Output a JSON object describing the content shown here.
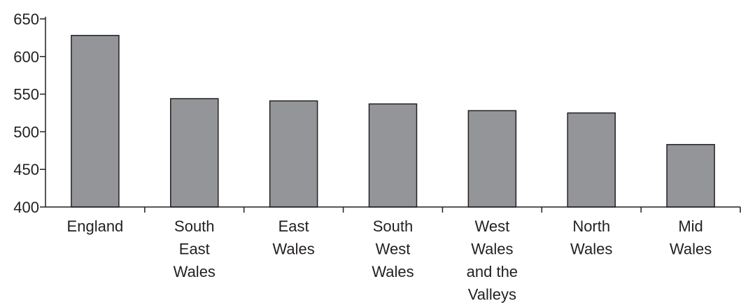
{
  "chart_data": {
    "type": "bar",
    "categories": [
      "England",
      "South East Wales",
      "East Wales",
      "South West Wales",
      "West Wales and the Valleys",
      "North Wales",
      "Mid Wales"
    ],
    "category_lines": [
      [
        "England"
      ],
      [
        "South",
        "East",
        "Wales"
      ],
      [
        "East",
        "Wales"
      ],
      [
        "South",
        "West",
        "Wales"
      ],
      [
        "West",
        "Wales",
        "and the",
        "Valleys"
      ],
      [
        "North",
        "Wales"
      ],
      [
        "Mid",
        "Wales"
      ]
    ],
    "values": [
      628,
      544,
      541,
      537,
      528,
      525,
      483
    ],
    "ylim": [
      400,
      650
    ],
    "yticks": [
      400,
      450,
      500,
      550,
      600,
      650
    ],
    "title": "",
    "xlabel": "",
    "ylabel": "",
    "grid": false,
    "bar_color": "#939598",
    "edge_color": "#231f20"
  }
}
